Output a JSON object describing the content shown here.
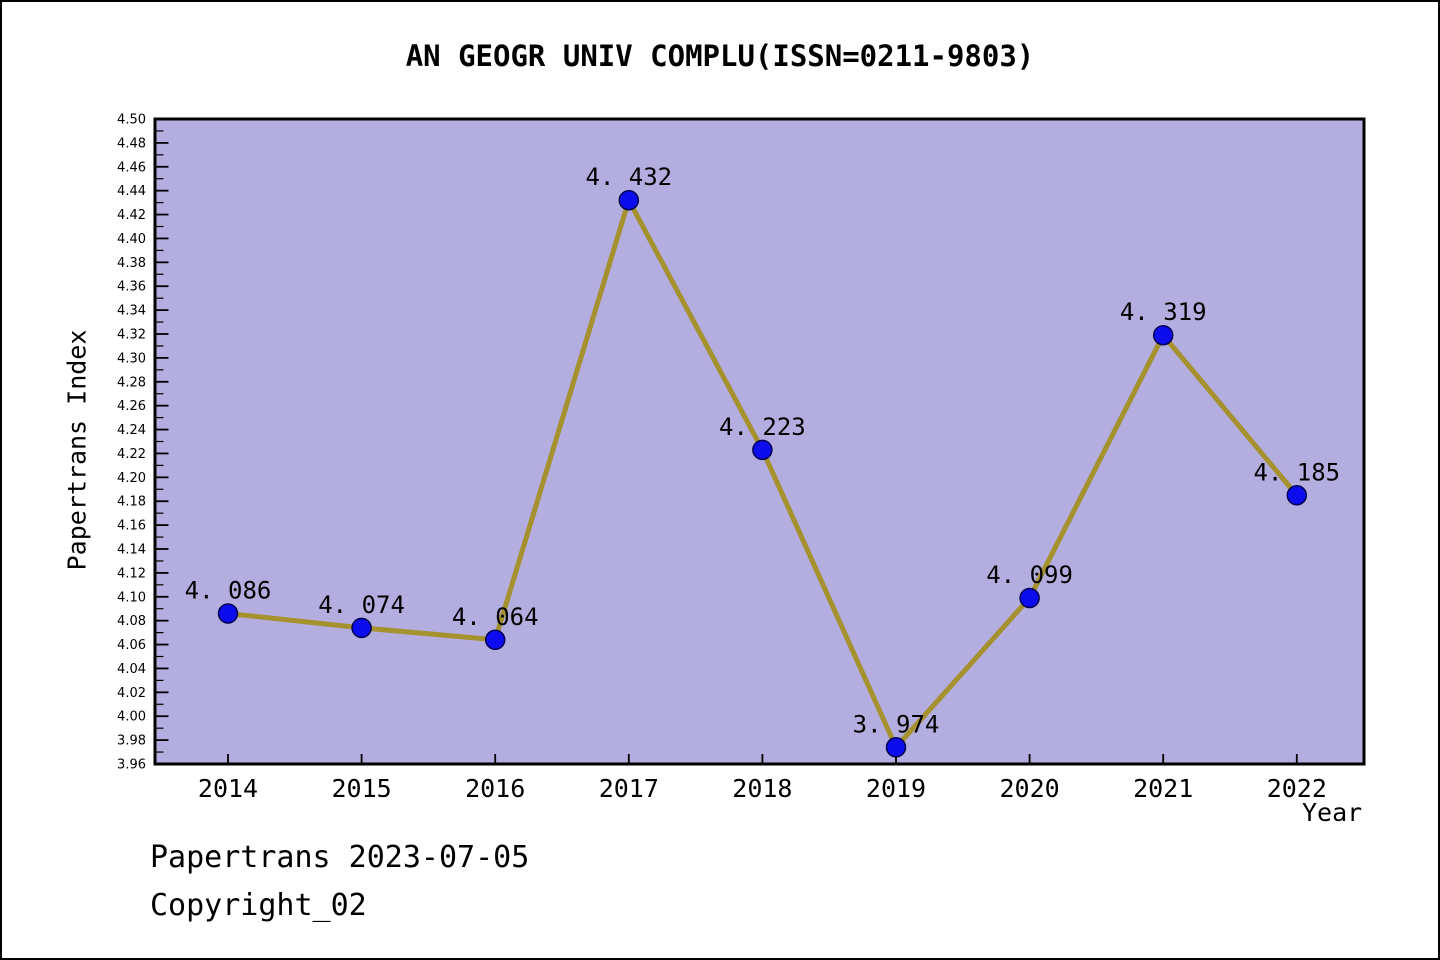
{
  "title": "AN GEOGR UNIV COMPLU(ISSN=0211-9803)",
  "axes": {
    "x_title": "Year",
    "y_title": "Papertrans Index"
  },
  "footer": {
    "line1": "Papertrans 2023-07-05",
    "line2": "Copyright_02"
  },
  "chart_data": {
    "type": "line",
    "title": "AN GEOGR UNIV COMPLU(ISSN=0211-9803)",
    "xlabel": "Year",
    "ylabel": "Papertrans Index",
    "x": [
      2014,
      2015,
      2016,
      2017,
      2018,
      2019,
      2020,
      2021,
      2022
    ],
    "x_tick_labels": [
      "2014",
      "2015",
      "2016",
      "2017",
      "2018",
      "2019",
      "2020",
      "2021",
      "2022"
    ],
    "values": [
      4.086,
      4.074,
      4.064,
      4.432,
      4.223,
      3.974,
      4.099,
      4.319,
      4.185
    ],
    "point_labels": [
      "4. 086",
      "4. 074",
      "4. 064",
      "4. 432",
      "4. 223",
      "3. 974",
      "4. 099",
      "4. 319",
      "4. 185"
    ],
    "ylim": [
      3.96,
      4.5
    ],
    "ytick_step": 0.02,
    "ytick_minor_step": 0.01,
    "grid": false,
    "legend": null,
    "series_name": "Papertrans Index",
    "colors": {
      "plot_bg": "#b4addf",
      "line": "#a5912d",
      "marker_fill": "#0c0cee",
      "marker_edge": "#000050",
      "frame": "#000000",
      "text": "#000000"
    }
  }
}
